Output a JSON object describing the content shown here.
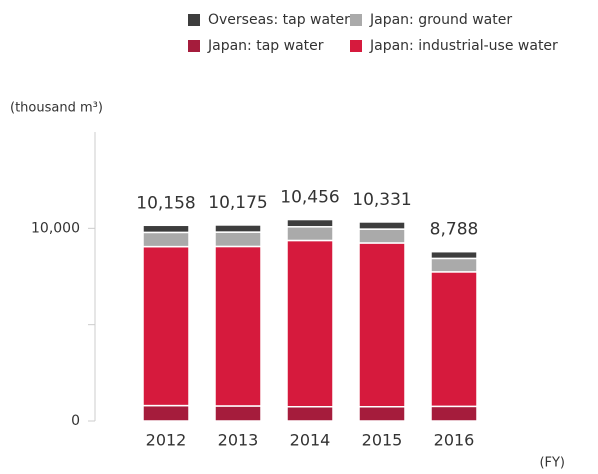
{
  "chart_data": {
    "type": "stacked_bar",
    "y_axis_label": "(thousand m³)",
    "x_axis_label": "(FY)",
    "categories": [
      "2012",
      "2013",
      "2014",
      "2015",
      "2016"
    ],
    "series": [
      {
        "name": "Japan: tap water",
        "color": "#a51c3c",
        "values": [
          800,
          780,
          740,
          740,
          760
        ]
      },
      {
        "name": "Japan: industrial-use water",
        "color": "#d61a3d",
        "values": [
          8250,
          8280,
          8630,
          8500,
          6980
        ]
      },
      {
        "name": "Japan: ground water",
        "color": "#aaaaaa",
        "values": [
          740,
          745,
          710,
          720,
          700
        ]
      },
      {
        "name": "Overseas: tap water",
        "color": "#3d3d3d",
        "values": [
          368,
          370,
          376,
          371,
          348
        ]
      }
    ],
    "totals": [
      10158,
      10175,
      10456,
      10331,
      8788
    ],
    "total_labels": [
      "10,158",
      "10,175",
      "10,456",
      "10,331",
      "8,788"
    ],
    "ylim": [
      0,
      15000
    ],
    "yticks": [
      0,
      {
        "value": 10000,
        "label": "10,000"
      }
    ],
    "yticks_unlabeled": [
      5000
    ]
  }
}
